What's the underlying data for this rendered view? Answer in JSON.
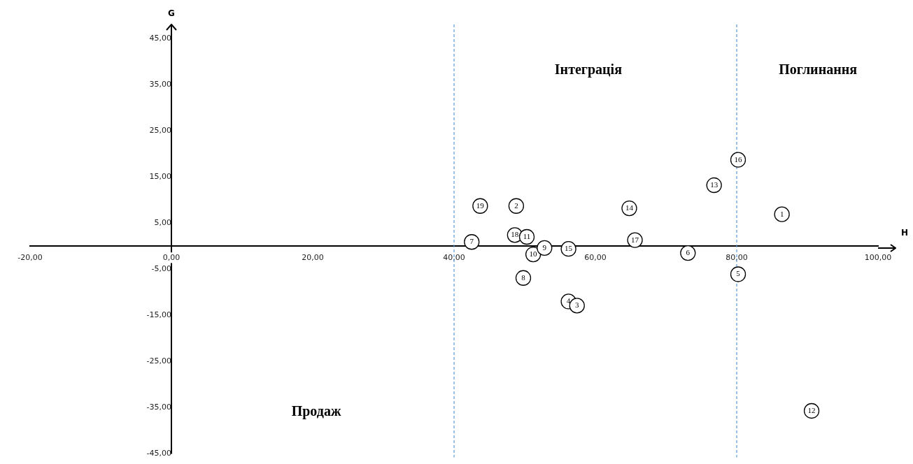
{
  "chart_data": {
    "type": "scatter",
    "xlabel": "H",
    "ylabel": "G",
    "marker": "circle",
    "legend": false,
    "xlim": [
      -20,
      100
    ],
    "ylim": [
      -45,
      45
    ],
    "xticks": [
      {
        "value": -20,
        "label": "-20,00"
      },
      {
        "value": 0,
        "label": "0,00"
      },
      {
        "value": 20,
        "label": "20,00"
      },
      {
        "value": 40,
        "label": "40,00"
      },
      {
        "value": 60,
        "label": "60,00"
      },
      {
        "value": 80,
        "label": "80,00"
      },
      {
        "value": 100,
        "label": "100,00"
      }
    ],
    "yticks": [
      {
        "value": -45,
        "label": "-45,00"
      },
      {
        "value": -35,
        "label": "-35,00"
      },
      {
        "value": -25,
        "label": "-25,00"
      },
      {
        "value": -15,
        "label": "-15,00"
      },
      {
        "value": -5,
        "label": "-5,00"
      },
      {
        "value": 5,
        "label": "5,00"
      },
      {
        "value": 15,
        "label": "15,00"
      },
      {
        "value": 25,
        "label": "25,00"
      },
      {
        "value": 35,
        "label": "35,00"
      },
      {
        "value": 45,
        "label": "45,00"
      }
    ],
    "ref_lines": [
      {
        "axis": "x",
        "value": 40,
        "color": "#5b9bd5",
        "line_style": "dashed"
      },
      {
        "axis": "x",
        "value": 80,
        "color": "#5b9bd5",
        "line_style": "dashed"
      }
    ],
    "annotations": [
      "Інтеграція",
      "Поглинання",
      "Продаж"
    ],
    "series": [
      {
        "name": "1",
        "color": "#000000",
        "x": [
          86.4
        ],
        "values": [
          6.9
        ]
      },
      {
        "name": "2",
        "color": "#000000",
        "x": [
          48.8
        ],
        "values": [
          8.7
        ]
      },
      {
        "name": "3",
        "color": "#000000",
        "x": [
          57.4
        ],
        "values": [
          -12.9
        ]
      },
      {
        "name": "4",
        "color": "#000000",
        "x": [
          56.2
        ],
        "values": [
          -12.0
        ]
      },
      {
        "name": "5",
        "color": "#000000",
        "x": [
          80.2
        ],
        "values": [
          -6.1
        ]
      },
      {
        "name": "6",
        "color": "#000000",
        "x": [
          73.1
        ],
        "values": [
          -1.5
        ]
      },
      {
        "name": "7",
        "color": "#000000",
        "x": [
          42.5
        ],
        "values": [
          0.9
        ]
      },
      {
        "name": "8",
        "color": "#000000",
        "x": [
          49.8
        ],
        "values": [
          -6.9
        ]
      },
      {
        "name": "9",
        "color": "#000000",
        "x": [
          52.8
        ],
        "values": [
          -0.4
        ]
      },
      {
        "name": "10",
        "color": "#000000",
        "x": [
          51.2
        ],
        "values": [
          -1.8
        ]
      },
      {
        "name": "11",
        "color": "#000000",
        "x": [
          50.3
        ],
        "values": [
          2.0
        ]
      },
      {
        "name": "12",
        "color": "#000000",
        "x": [
          90.6
        ],
        "values": [
          -35.7
        ]
      },
      {
        "name": "13",
        "color": "#000000",
        "x": [
          76.8
        ],
        "values": [
          13.2
        ]
      },
      {
        "name": "14",
        "color": "#000000",
        "x": [
          64.8
        ],
        "values": [
          8.2
        ]
      },
      {
        "name": "15",
        "color": "#000000",
        "x": [
          56.2
        ],
        "values": [
          -0.6
        ]
      },
      {
        "name": "16",
        "color": "#000000",
        "x": [
          80.2
        ],
        "values": [
          18.7
        ]
      },
      {
        "name": "17",
        "color": "#000000",
        "x": [
          65.6
        ],
        "values": [
          1.3
        ]
      },
      {
        "name": "18",
        "color": "#000000",
        "x": [
          48.6
        ],
        "values": [
          2.4
        ]
      },
      {
        "name": "19",
        "color": "#000000",
        "x": [
          43.7
        ],
        "values": [
          8.7
        ]
      }
    ]
  }
}
